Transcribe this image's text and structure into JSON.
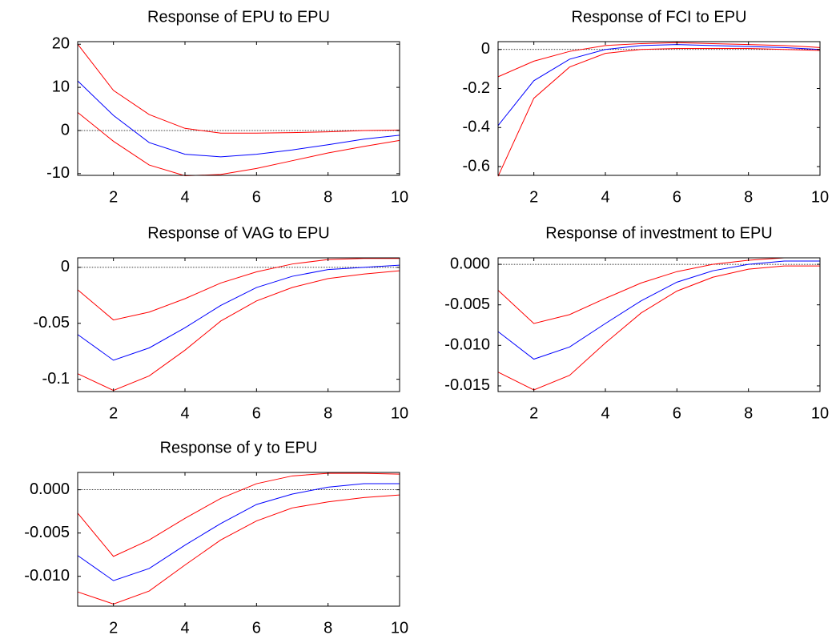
{
  "chart_data": [
    {
      "type": "line",
      "title": "Response of EPU to EPU",
      "x": [
        1,
        2,
        3,
        4,
        5,
        6,
        7,
        8,
        9,
        10
      ],
      "xlim": [
        1,
        10
      ],
      "xticks": [
        2,
        4,
        6,
        8,
        10
      ],
      "ylim": [
        -10.4,
        20.6
      ],
      "yticks": [
        -10,
        0,
        10,
        20
      ],
      "reference_line": 0,
      "series": [
        {
          "color": "#0000ff",
          "values": [
            11.5,
            3.5,
            -2.8,
            -5.5,
            -6.1,
            -5.5,
            -4.5,
            -3.3,
            -2,
            -1.1
          ]
        },
        {
          "color": "#ff0000",
          "values": [
            20,
            9.3,
            3.7,
            0.5,
            -0.6,
            -0.6,
            -0.5,
            -0.3,
            0,
            0.1
          ]
        },
        {
          "color": "#ff0000",
          "values": [
            4.2,
            -2.5,
            -8,
            -10.5,
            -10.2,
            -8.8,
            -7,
            -5.2,
            -3.7,
            -2.3
          ]
        }
      ]
    },
    {
      "type": "line",
      "title": "Response of FCI to EPU",
      "x": [
        1,
        2,
        3,
        4,
        5,
        6,
        7,
        8,
        9,
        10
      ],
      "xlim": [
        1,
        10
      ],
      "xticks": [
        2,
        4,
        6,
        8,
        10
      ],
      "ylim": [
        -0.645,
        0.04
      ],
      "yticks": [
        -0.6,
        -0.4,
        -0.2,
        0
      ],
      "reference_line": 0,
      "series": [
        {
          "color": "#0000ff",
          "values": [
            -0.39,
            -0.16,
            -0.05,
            0.0,
            0.02,
            0.025,
            0.02,
            0.015,
            0.01,
            0.0
          ]
        },
        {
          "color": "#ff0000",
          "values": [
            -0.14,
            -0.06,
            -0.01,
            0.02,
            0.03,
            0.035,
            0.03,
            0.025,
            0.02,
            0.01
          ]
        },
        {
          "color": "#ff0000",
          "values": [
            -0.65,
            -0.25,
            -0.09,
            -0.02,
            0.0,
            0.005,
            0.005,
            0.005,
            0.0,
            -0.005
          ]
        }
      ]
    },
    {
      "type": "line",
      "title": "Response of VAG to EPU",
      "x": [
        1,
        2,
        3,
        4,
        5,
        6,
        7,
        8,
        9,
        10
      ],
      "xlim": [
        1,
        10
      ],
      "xticks": [
        2,
        4,
        6,
        8,
        10
      ],
      "ylim": [
        -0.111,
        0.0085
      ],
      "yticks": [
        -0.1,
        -0.05,
        0
      ],
      "reference_line": 0,
      "series": [
        {
          "color": "#0000ff",
          "values": [
            -0.06,
            -0.083,
            -0.072,
            -0.054,
            -0.034,
            -0.018,
            -0.008,
            -0.002,
            0.0,
            0.002
          ]
        },
        {
          "color": "#ff0000",
          "values": [
            -0.02,
            -0.047,
            -0.04,
            -0.028,
            -0.014,
            -0.004,
            0.003,
            0.007,
            0.008,
            0.008
          ]
        },
        {
          "color": "#ff0000",
          "values": [
            -0.095,
            -0.11,
            -0.097,
            -0.074,
            -0.048,
            -0.03,
            -0.018,
            -0.01,
            -0.006,
            -0.003
          ]
        }
      ]
    },
    {
      "type": "line",
      "title": "Response of investment to EPU",
      "x": [
        1,
        2,
        3,
        4,
        5,
        6,
        7,
        8,
        9,
        10
      ],
      "xlim": [
        1,
        10
      ],
      "xticks": [
        2,
        4,
        6,
        8,
        10
      ],
      "ylim": [
        -0.0157,
        0.0008
      ],
      "yticks": [
        -0.015,
        {
          "value": -0.01,
          "label": "-0.010"
        },
        -0.005,
        {
          "value": 0,
          "label": "0.000"
        }
      ],
      "reference_line": 0,
      "series": [
        {
          "color": "#0000ff",
          "values": [
            -0.0083,
            -0.0117,
            -0.0102,
            -0.0073,
            -0.0045,
            -0.0022,
            -0.0008,
            0.0,
            0.0004,
            0.0004
          ]
        },
        {
          "color": "#ff0000",
          "values": [
            -0.0032,
            -0.0073,
            -0.0062,
            -0.0042,
            -0.0023,
            -0.0009,
            0.0,
            0.0005,
            0.0008,
            0.0008
          ]
        },
        {
          "color": "#ff0000",
          "values": [
            -0.0133,
            -0.0155,
            -0.0137,
            -0.0097,
            -0.006,
            -0.0033,
            -0.0016,
            -0.0006,
            -0.0002,
            -0.0002
          ]
        }
      ]
    },
    {
      "type": "line",
      "title": "Response of y to EPU",
      "x": [
        1,
        2,
        3,
        4,
        5,
        6,
        7,
        8,
        9,
        10
      ],
      "xlim": [
        1,
        10
      ],
      "xticks": [
        2,
        4,
        6,
        8,
        10
      ],
      "ylim": [
        -0.01345,
        0.002
      ],
      "yticks": [
        {
          "value": -0.01,
          "label": "-0.010"
        },
        -0.005,
        {
          "value": 0,
          "label": "0.000"
        }
      ],
      "reference_line": 0,
      "series": [
        {
          "color": "#0000ff",
          "values": [
            -0.0076,
            -0.0105,
            -0.0091,
            -0.0064,
            -0.0039,
            -0.0017,
            -0.0005,
            0.0003,
            0.0007,
            0.0007
          ]
        },
        {
          "color": "#ff0000",
          "values": [
            -0.0027,
            -0.0077,
            -0.0058,
            -0.0033,
            -0.001,
            0.0007,
            0.0016,
            0.0019,
            0.0019,
            0.0018
          ]
        },
        {
          "color": "#ff0000",
          "values": [
            -0.0118,
            -0.0132,
            -0.0117,
            -0.0087,
            -0.0058,
            -0.0036,
            -0.0021,
            -0.0014,
            -0.0009,
            -0.0006
          ]
        }
      ]
    }
  ]
}
